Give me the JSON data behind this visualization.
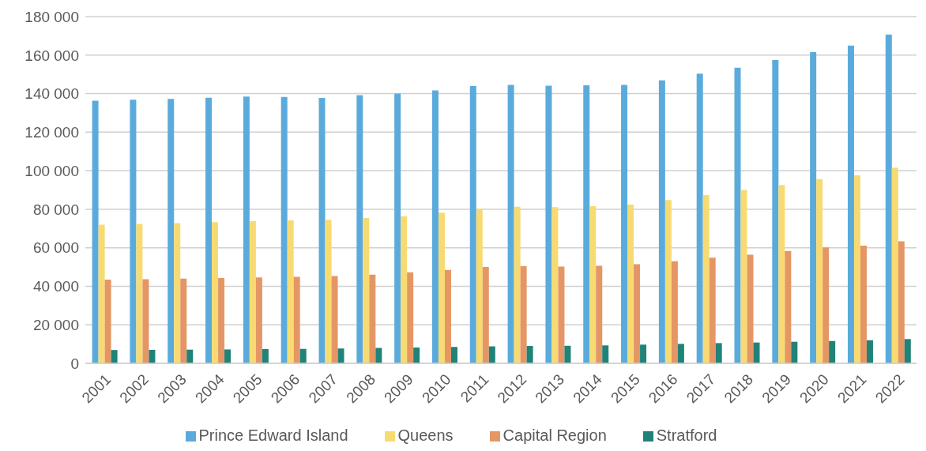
{
  "chart_data": {
    "type": "bar",
    "categories": [
      "2001",
      "2002",
      "2003",
      "2004",
      "2005",
      "2006",
      "2007",
      "2008",
      "2009",
      "2010",
      "2011",
      "2012",
      "2013",
      "2014",
      "2015",
      "2016",
      "2017",
      "2018",
      "2019",
      "2020",
      "2021",
      "2022"
    ],
    "series": [
      {
        "name": "Prince Edward Island",
        "color": "#5aabdc",
        "values": [
          136300,
          136800,
          137300,
          137900,
          138500,
          138300,
          137800,
          139200,
          140000,
          141700,
          143900,
          144500,
          144100,
          144300,
          144500,
          146900,
          150400,
          153400,
          157400,
          161500,
          164900,
          170700
        ]
      },
      {
        "name": "Queens",
        "color": "#f7db72",
        "values": [
          72000,
          72400,
          72800,
          73300,
          73800,
          74200,
          74500,
          75400,
          76400,
          78200,
          80200,
          81300,
          81100,
          81600,
          82400,
          84800,
          87300,
          90000,
          92600,
          95600,
          97600,
          101600
        ]
      },
      {
        "name": "Capital Region",
        "color": "#e59665",
        "values": [
          43500,
          43700,
          44000,
          44300,
          44600,
          44900,
          45300,
          46000,
          47300,
          48500,
          50000,
          50400,
          50200,
          50600,
          51500,
          53000,
          54800,
          56400,
          58300,
          60200,
          61100,
          63300
        ]
      },
      {
        "name": "Stratford",
        "color": "#1f8378",
        "values": [
          6900,
          7000,
          7100,
          7200,
          7400,
          7500,
          7700,
          8000,
          8200,
          8500,
          8800,
          9000,
          9100,
          9300,
          9700,
          10100,
          10500,
          10800,
          11200,
          11600,
          12000,
          12600
        ]
      }
    ],
    "ylim": [
      0,
      180000
    ],
    "yticks": [
      {
        "value": 0,
        "label": "0"
      },
      {
        "value": 20000,
        "label": "20 000"
      },
      {
        "value": 40000,
        "label": "40 000"
      },
      {
        "value": 60000,
        "label": "60 000"
      },
      {
        "value": 80000,
        "label": "80 000"
      },
      {
        "value": 100000,
        "label": "100 000"
      },
      {
        "value": 120000,
        "label": "120 000"
      },
      {
        "value": 140000,
        "label": "140 000"
      },
      {
        "value": 160000,
        "label": "160 000"
      },
      {
        "value": 180000,
        "label": "180 000"
      }
    ],
    "grid": "y",
    "legend": "bottom"
  }
}
